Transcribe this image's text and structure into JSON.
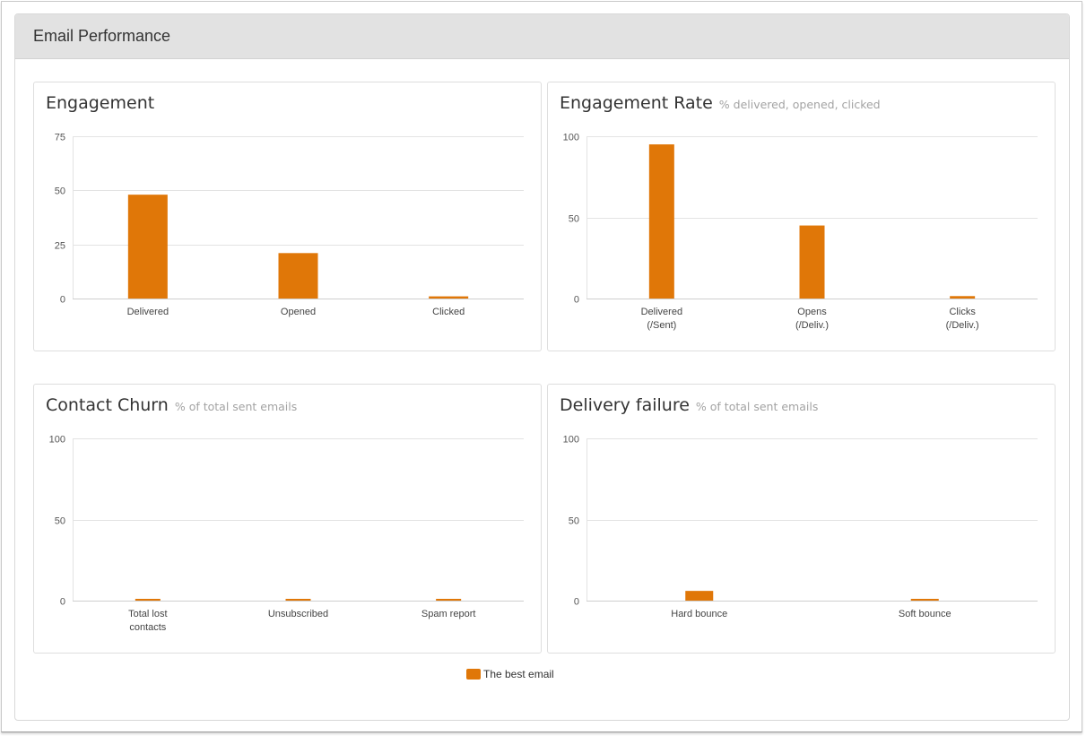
{
  "panel": {
    "title": "Email Performance"
  },
  "legend": {
    "label": "The best email",
    "color": "#e07708"
  },
  "chart_data": [
    {
      "type": "bar",
      "title": "Engagement",
      "subtitle": "",
      "categories": [
        [
          "Delivered"
        ],
        [
          "Opened"
        ],
        [
          "Clicked"
        ]
      ],
      "values": [
        48,
        21,
        1
      ],
      "yticks": [
        "75",
        "50",
        "25",
        "0"
      ],
      "ylim": [
        0,
        75
      ],
      "series": [
        {
          "name": "The best email",
          "values": [
            48,
            21,
            1
          ]
        }
      ],
      "legend": "bottom-center",
      "grid": true
    },
    {
      "type": "bar",
      "title": "Engagement Rate",
      "subtitle": "% delivered, opened, clicked",
      "categories": [
        [
          "Delivered",
          "(/Sent)"
        ],
        [
          "Opens",
          "(/Deliv.)"
        ],
        [
          "Clicks",
          "(/Deliv.)"
        ]
      ],
      "values": [
        95,
        45,
        1.5
      ],
      "yticks": [
        "100",
        "50",
        "0"
      ],
      "ylim": [
        0,
        100
      ],
      "series": [
        {
          "name": "The best email",
          "values": [
            95,
            45,
            1.5
          ]
        }
      ],
      "legend": "bottom-center",
      "grid": true
    },
    {
      "type": "bar",
      "title": "Contact Churn",
      "subtitle": "% of total sent emails",
      "categories": [
        [
          "Total lost",
          "contacts"
        ],
        [
          "Unsubscribed"
        ],
        [
          "Spam report"
        ]
      ],
      "values": [
        1,
        1,
        1
      ],
      "yticks": [
        "100",
        "50",
        "0"
      ],
      "ylim": [
        0,
        100
      ],
      "series": [
        {
          "name": "The best email",
          "values": [
            1,
            1,
            1
          ]
        }
      ],
      "legend": "bottom-center",
      "grid": true
    },
    {
      "type": "bar",
      "title": "Delivery failure",
      "subtitle": "% of total sent emails",
      "categories": [
        [
          "Hard bounce"
        ],
        [
          "Soft bounce"
        ]
      ],
      "values": [
        6,
        1
      ],
      "yticks": [
        "100",
        "50",
        "0"
      ],
      "ylim": [
        0,
        100
      ],
      "series": [
        {
          "name": "The best email",
          "values": [
            6,
            1
          ]
        }
      ],
      "legend": "bottom-center",
      "grid": true
    }
  ]
}
